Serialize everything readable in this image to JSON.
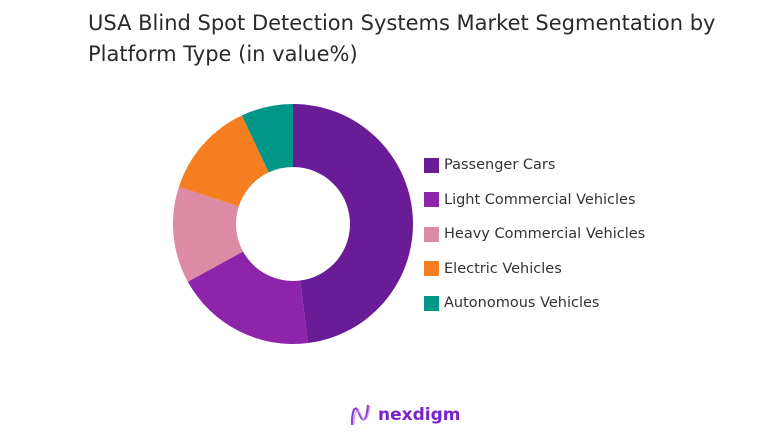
{
  "chart_data": {
    "type": "pie",
    "donut": true,
    "title": "USA Blind Spot Detection Systems Market Segmentation by Platform Type (in value%)",
    "categories": [
      "Passenger Cars",
      "Light Commercial Vehicles",
      "Heavy Commercial Vehicles",
      "Electric Vehicles",
      "Autonomous Vehicles"
    ],
    "values": [
      48,
      19,
      13,
      13,
      7
    ],
    "colors": [
      "#6a1b96",
      "#8e24aa",
      "#dd8aa5",
      "#f47e20",
      "#009688"
    ],
    "legend_position": "right"
  },
  "logo": {
    "text": "nexdigm",
    "icon": "nexdigm-wave-icon"
  }
}
